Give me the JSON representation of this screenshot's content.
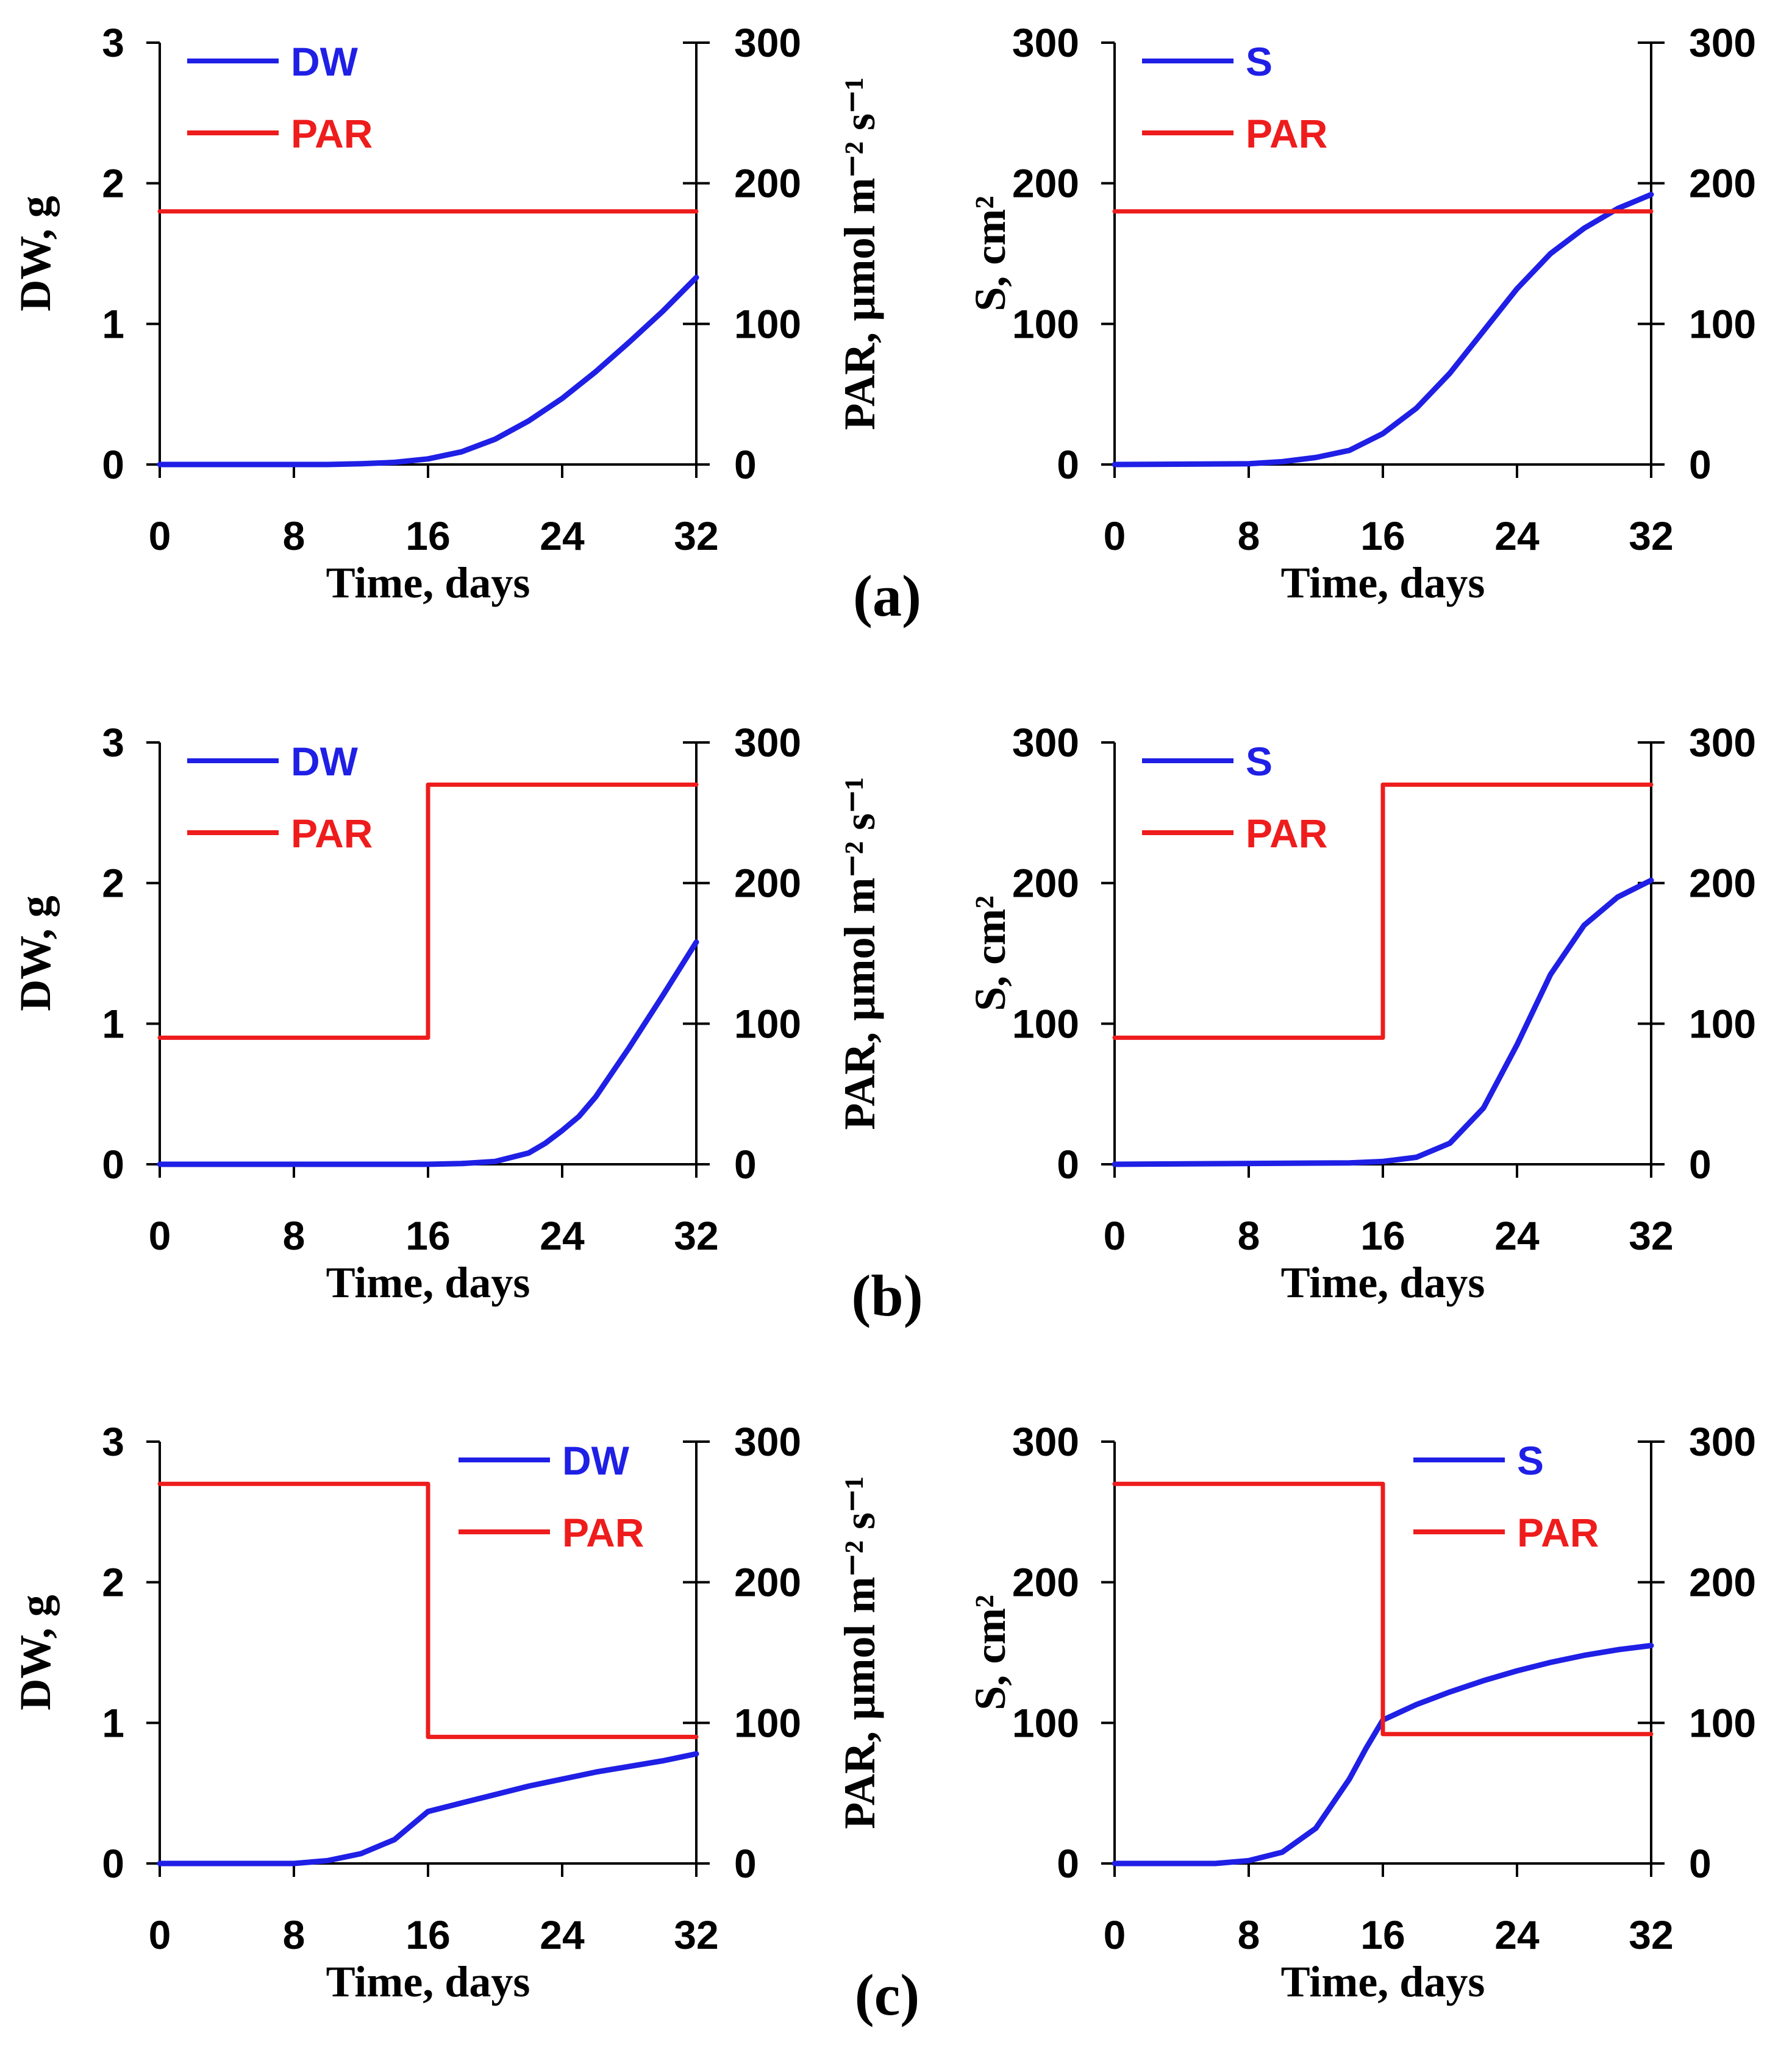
{
  "colors": {
    "growth": "#1f1fe6",
    "par": "#ee1c1c",
    "axis": "#000000"
  },
  "panel_labels": [
    "(a)",
    "(b)",
    "(c)"
  ],
  "chart_data": [
    {
      "type": "line",
      "row": 0,
      "col": 0,
      "variable": "DW",
      "xlabel": "Time, days",
      "ylabel": "DW, g",
      "y2label": "PAR, µmol m⁻² s⁻¹",
      "xlim": [
        0,
        32
      ],
      "xticks": [
        0,
        8,
        16,
        24,
        32
      ],
      "ylim": [
        0,
        3
      ],
      "yticks": [
        0,
        1,
        2,
        3
      ],
      "y2lim": [
        0,
        300
      ],
      "y2ticks": [
        0,
        100,
        200,
        300
      ],
      "legend_position": "top-left",
      "series": [
        {
          "name": "DW",
          "axis": "left",
          "color": "#1f1fe6",
          "x": [
            0,
            10,
            12,
            14,
            16,
            18,
            20,
            22,
            24,
            26,
            28,
            30,
            32
          ],
          "y": [
            0,
            0,
            0.005,
            0.015,
            0.04,
            0.09,
            0.18,
            0.31,
            0.47,
            0.66,
            0.87,
            1.09,
            1.33
          ]
        },
        {
          "name": "PAR",
          "axis": "right",
          "color": "#ee1c1c",
          "x": [
            0,
            32
          ],
          "y": [
            180,
            180
          ]
        }
      ]
    },
    {
      "type": "line",
      "row": 0,
      "col": 1,
      "variable": "S",
      "xlabel": "Time, days",
      "ylabel": "S, cm²",
      "y2label": "PAR, µmol m⁻² s⁻¹",
      "xlim": [
        0,
        32
      ],
      "xticks": [
        0,
        8,
        16,
        24,
        32
      ],
      "ylim": [
        0,
        300
      ],
      "yticks": [
        0,
        100,
        200,
        300
      ],
      "y2lim": [
        0,
        300
      ],
      "y2ticks": [
        0,
        100,
        200,
        300
      ],
      "legend_position": "top-left",
      "series": [
        {
          "name": "S",
          "axis": "left",
          "color": "#1f1fe6",
          "x": [
            0,
            8,
            10,
            12,
            14,
            16,
            18,
            20,
            22,
            24,
            26,
            28,
            30,
            32
          ],
          "y": [
            0,
            0.5,
            2,
            5,
            10,
            22,
            40,
            65,
            95,
            125,
            150,
            168,
            182,
            192
          ]
        },
        {
          "name": "PAR",
          "axis": "right",
          "color": "#ee1c1c",
          "x": [
            0,
            32
          ],
          "y": [
            180,
            180
          ]
        }
      ]
    },
    {
      "type": "line",
      "row": 1,
      "col": 0,
      "variable": "DW",
      "xlabel": "Time, days",
      "ylabel": "DW, g",
      "y2label": "PAR, µmol m⁻² s⁻¹",
      "xlim": [
        0,
        32
      ],
      "xticks": [
        0,
        8,
        16,
        24,
        32
      ],
      "ylim": [
        0,
        3
      ],
      "yticks": [
        0,
        1,
        2,
        3
      ],
      "y2lim": [
        0,
        300
      ],
      "y2ticks": [
        0,
        100,
        200,
        300
      ],
      "legend_position": "top-left",
      "series": [
        {
          "name": "DW",
          "axis": "left",
          "color": "#1f1fe6",
          "x": [
            0,
            16,
            18,
            20,
            22,
            23,
            24,
            25,
            26,
            28,
            30,
            32
          ],
          "y": [
            0,
            0,
            0.005,
            0.02,
            0.08,
            0.15,
            0.24,
            0.34,
            0.48,
            0.83,
            1.2,
            1.58
          ]
        },
        {
          "name": "PAR",
          "axis": "right",
          "color": "#ee1c1c",
          "x": [
            0,
            16,
            16,
            32
          ],
          "y": [
            90,
            90,
            270,
            270
          ]
        }
      ]
    },
    {
      "type": "line",
      "row": 1,
      "col": 1,
      "variable": "S",
      "xlabel": "Time, days",
      "ylabel": "S, cm²",
      "y2label": "PAR, µmol m⁻² s⁻¹",
      "xlim": [
        0,
        32
      ],
      "xticks": [
        0,
        8,
        16,
        24,
        32
      ],
      "ylim": [
        0,
        300
      ],
      "yticks": [
        0,
        100,
        200,
        300
      ],
      "y2lim": [
        0,
        300
      ],
      "y2ticks": [
        0,
        100,
        200,
        300
      ],
      "legend_position": "top-left",
      "series": [
        {
          "name": "S",
          "axis": "left",
          "color": "#1f1fe6",
          "x": [
            0,
            14,
            16,
            18,
            20,
            22,
            24,
            26,
            28,
            30,
            32
          ],
          "y": [
            0,
            1,
            2,
            5,
            15,
            40,
            85,
            135,
            170,
            190,
            202
          ]
        },
        {
          "name": "PAR",
          "axis": "right",
          "color": "#ee1c1c",
          "x": [
            0,
            16,
            16,
            32
          ],
          "y": [
            90,
            90,
            270,
            270
          ]
        }
      ]
    },
    {
      "type": "line",
      "row": 2,
      "col": 0,
      "variable": "DW",
      "xlabel": "Time, days",
      "ylabel": "DW, g",
      "y2label": "PAR, µmol m⁻² s⁻¹",
      "xlim": [
        0,
        32
      ],
      "xticks": [
        0,
        8,
        16,
        24,
        32
      ],
      "ylim": [
        0,
        3
      ],
      "yticks": [
        0,
        1,
        2,
        3
      ],
      "y2lim": [
        0,
        300
      ],
      "y2ticks": [
        0,
        100,
        200,
        300
      ],
      "legend_position": "top-right",
      "series": [
        {
          "name": "DW",
          "axis": "left",
          "color": "#1f1fe6",
          "x": [
            0,
            8,
            10,
            12,
            14,
            15,
            16,
            18,
            20,
            22,
            24,
            26,
            28,
            30,
            32
          ],
          "y": [
            0,
            0,
            0.02,
            0.07,
            0.17,
            0.27,
            0.37,
            0.43,
            0.49,
            0.55,
            0.6,
            0.65,
            0.69,
            0.73,
            0.78
          ]
        },
        {
          "name": "PAR",
          "axis": "right",
          "color": "#ee1c1c",
          "x": [
            0,
            16,
            16,
            32
          ],
          "y": [
            270,
            270,
            90,
            90
          ]
        }
      ]
    },
    {
      "type": "line",
      "row": 2,
      "col": 1,
      "variable": "S",
      "xlabel": "Time, days",
      "ylabel": "S, cm²",
      "y2label": "PAR, µmol m⁻² s⁻¹",
      "xlim": [
        0,
        32
      ],
      "xticks": [
        0,
        8,
        16,
        24,
        32
      ],
      "ylim": [
        0,
        300
      ],
      "yticks": [
        0,
        100,
        200,
        300
      ],
      "y2lim": [
        0,
        300
      ],
      "y2ticks": [
        0,
        100,
        200,
        300
      ],
      "legend_position": "top-right",
      "series": [
        {
          "name": "S",
          "axis": "left",
          "color": "#1f1fe6",
          "x": [
            0,
            6,
            8,
            10,
            12,
            14,
            15,
            16,
            18,
            20,
            22,
            24,
            26,
            28,
            30,
            32
          ],
          "y": [
            0,
            0,
            2,
            8,
            25,
            60,
            82,
            102,
            113,
            122,
            130,
            137,
            143,
            148,
            152,
            155
          ]
        },
        {
          "name": "PAR",
          "axis": "right",
          "color": "#ee1c1c",
          "x": [
            0,
            16,
            16,
            32
          ],
          "y": [
            270,
            270,
            92,
            92
          ]
        }
      ]
    }
  ]
}
